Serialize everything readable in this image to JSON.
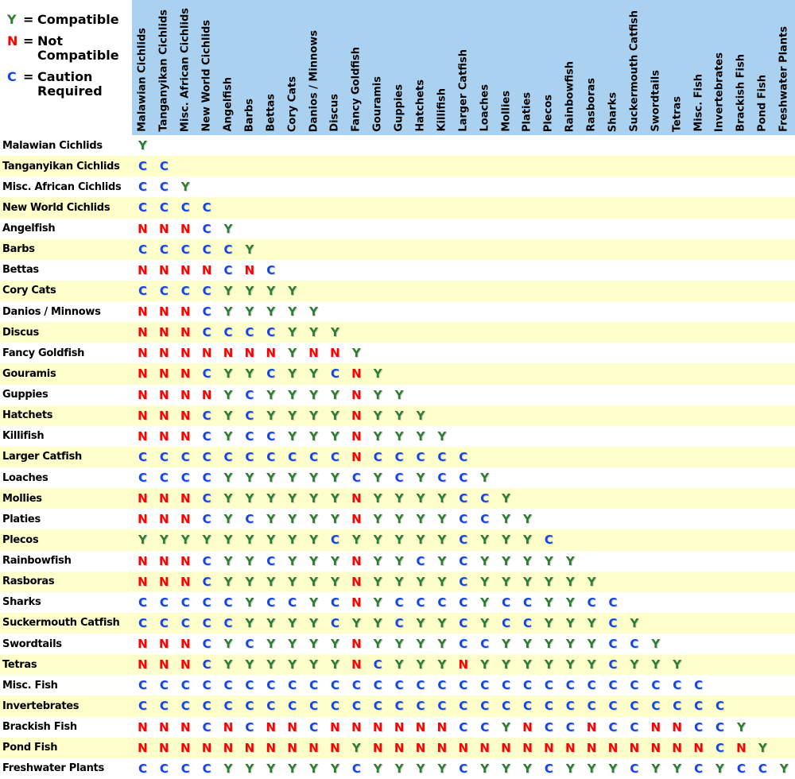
{
  "legend": {
    "items": [
      {
        "symbol": "Y",
        "label": "Compatible",
        "meaning": "compatible"
      },
      {
        "symbol": "N",
        "label": "Not\nCompatible",
        "meaning": "not_compatible"
      },
      {
        "symbol": "C",
        "label": "Caution\nRequired",
        "meaning": "caution"
      }
    ]
  },
  "colors": {
    "compatible": "#2e7d32",
    "not_compatible": "#ff0000",
    "caution": "#1446e6",
    "header_bg": "#aad2f0",
    "row_bg": "#ffffff",
    "row_alt_bg": "#ffffcc"
  },
  "chart_data": {
    "type": "table",
    "title": "",
    "legend_position": "top-left",
    "columns": [
      "Malawian Cichlids",
      "Tanganyikan Cichlids",
      "Misc. African Cichlids",
      "New World Cichlids",
      "Angelfish",
      "Barbs",
      "Bettas",
      "Cory Cats",
      "Danios / Minnows",
      "Discus",
      "Fancy Goldfish",
      "Gouramis",
      "Guppies",
      "Hatchets",
      "Killifish",
      "Larger Catfish",
      "Loaches",
      "Mollies",
      "Platies",
      "Plecos",
      "Rainbowfish",
      "Rasboras",
      "Sharks",
      "Suckermouth Catfish",
      "Swordtails",
      "Tetras",
      "Misc. Fish",
      "Invertebrates",
      "Brackish Fish",
      "Pond Fish",
      "Freshwater Plants"
    ],
    "rows": [
      {
        "name": "Malawian Cichlids",
        "values": [
          "Y"
        ]
      },
      {
        "name": "Tanganyikan Cichlids",
        "values": [
          "C",
          "C"
        ]
      },
      {
        "name": "Misc. African Cichlids",
        "values": [
          "C",
          "C",
          "Y"
        ]
      },
      {
        "name": "New World Cichlids",
        "values": [
          "C",
          "C",
          "C",
          "C"
        ]
      },
      {
        "name": "Angelfish",
        "values": [
          "N",
          "N",
          "N",
          "C",
          "Y"
        ]
      },
      {
        "name": "Barbs",
        "values": [
          "C",
          "C",
          "C",
          "C",
          "C",
          "Y"
        ]
      },
      {
        "name": "Bettas",
        "values": [
          "N",
          "N",
          "N",
          "N",
          "C",
          "N",
          "C"
        ]
      },
      {
        "name": "Cory Cats",
        "values": [
          "C",
          "C",
          "C",
          "C",
          "Y",
          "Y",
          "Y",
          "Y"
        ]
      },
      {
        "name": "Danios / Minnows",
        "values": [
          "N",
          "N",
          "N",
          "C",
          "Y",
          "Y",
          "Y",
          "Y",
          "Y"
        ]
      },
      {
        "name": "Discus",
        "values": [
          "N",
          "N",
          "N",
          "C",
          "C",
          "C",
          "C",
          "Y",
          "Y",
          "Y"
        ]
      },
      {
        "name": "Fancy Goldfish",
        "values": [
          "N",
          "N",
          "N",
          "N",
          "N",
          "N",
          "N",
          "Y",
          "N",
          "N",
          "Y"
        ]
      },
      {
        "name": "Gouramis",
        "values": [
          "N",
          "N",
          "N",
          "C",
          "Y",
          "Y",
          "C",
          "Y",
          "Y",
          "C",
          "N",
          "Y"
        ]
      },
      {
        "name": "Guppies",
        "values": [
          "N",
          "N",
          "N",
          "N",
          "Y",
          "C",
          "Y",
          "Y",
          "Y",
          "Y",
          "N",
          "Y",
          "Y"
        ]
      },
      {
        "name": "Hatchets",
        "values": [
          "N",
          "N",
          "N",
          "C",
          "Y",
          "C",
          "Y",
          "Y",
          "Y",
          "Y",
          "N",
          "Y",
          "Y",
          "Y"
        ]
      },
      {
        "name": "Killifish",
        "values": [
          "N",
          "N",
          "N",
          "C",
          "Y",
          "C",
          "C",
          "Y",
          "Y",
          "Y",
          "N",
          "Y",
          "Y",
          "Y",
          "Y"
        ]
      },
      {
        "name": "Larger Catfish",
        "values": [
          "C",
          "C",
          "C",
          "C",
          "C",
          "C",
          "C",
          "C",
          "C",
          "C",
          "N",
          "C",
          "C",
          "C",
          "C",
          "C"
        ]
      },
      {
        "name": "Loaches",
        "values": [
          "C",
          "C",
          "C",
          "C",
          "Y",
          "Y",
          "Y",
          "Y",
          "Y",
          "Y",
          "C",
          "Y",
          "C",
          "Y",
          "C",
          "C",
          "Y"
        ]
      },
      {
        "name": "Mollies",
        "values": [
          "N",
          "N",
          "N",
          "C",
          "Y",
          "Y",
          "Y",
          "Y",
          "Y",
          "Y",
          "N",
          "Y",
          "Y",
          "Y",
          "Y",
          "C",
          "C",
          "Y"
        ]
      },
      {
        "name": "Platies",
        "values": [
          "N",
          "N",
          "N",
          "C",
          "Y",
          "C",
          "Y",
          "Y",
          "Y",
          "Y",
          "N",
          "Y",
          "Y",
          "Y",
          "Y",
          "C",
          "C",
          "Y",
          "Y"
        ]
      },
      {
        "name": "Plecos",
        "values": [
          "Y",
          "Y",
          "Y",
          "Y",
          "Y",
          "Y",
          "Y",
          "Y",
          "Y",
          "C",
          "Y",
          "Y",
          "Y",
          "Y",
          "Y",
          "C",
          "Y",
          "Y",
          "Y",
          "C"
        ]
      },
      {
        "name": "Rainbowfish",
        "values": [
          "N",
          "N",
          "N",
          "C",
          "Y",
          "Y",
          "C",
          "Y",
          "Y",
          "Y",
          "N",
          "Y",
          "Y",
          "C",
          "Y",
          "C",
          "Y",
          "Y",
          "Y",
          "Y",
          "Y"
        ]
      },
      {
        "name": "Rasboras",
        "values": [
          "N",
          "N",
          "N",
          "C",
          "Y",
          "Y",
          "Y",
          "Y",
          "Y",
          "Y",
          "N",
          "Y",
          "Y",
          "Y",
          "Y",
          "C",
          "Y",
          "Y",
          "Y",
          "Y",
          "Y",
          "Y"
        ]
      },
      {
        "name": "Sharks",
        "values": [
          "C",
          "C",
          "C",
          "C",
          "C",
          "Y",
          "C",
          "C",
          "Y",
          "C",
          "N",
          "Y",
          "C",
          "C",
          "C",
          "C",
          "Y",
          "C",
          "C",
          "Y",
          "Y",
          "C",
          "C"
        ]
      },
      {
        "name": "Suckermouth Catfish",
        "values": [
          "C",
          "C",
          "C",
          "C",
          "C",
          "Y",
          "Y",
          "Y",
          "Y",
          "C",
          "Y",
          "Y",
          "C",
          "Y",
          "Y",
          "C",
          "Y",
          "C",
          "C",
          "Y",
          "Y",
          "Y",
          "C",
          "Y"
        ]
      },
      {
        "name": "Swordtails",
        "values": [
          "N",
          "N",
          "N",
          "C",
          "Y",
          "C",
          "Y",
          "Y",
          "Y",
          "Y",
          "N",
          "Y",
          "Y",
          "Y",
          "Y",
          "C",
          "C",
          "Y",
          "Y",
          "Y",
          "Y",
          "Y",
          "C",
          "C",
          "Y"
        ]
      },
      {
        "name": "Tetras",
        "values": [
          "N",
          "N",
          "N",
          "C",
          "Y",
          "Y",
          "Y",
          "Y",
          "Y",
          "Y",
          "N",
          "C",
          "Y",
          "Y",
          "Y",
          "N",
          "Y",
          "Y",
          "Y",
          "Y",
          "Y",
          "Y",
          "C",
          "Y",
          "Y",
          "Y"
        ]
      },
      {
        "name": "Misc. Fish",
        "values": [
          "C",
          "C",
          "C",
          "C",
          "C",
          "C",
          "C",
          "C",
          "C",
          "C",
          "C",
          "C",
          "C",
          "C",
          "C",
          "C",
          "C",
          "C",
          "C",
          "C",
          "C",
          "C",
          "C",
          "C",
          "C",
          "C",
          "C"
        ]
      },
      {
        "name": "Invertebrates",
        "values": [
          "C",
          "C",
          "C",
          "C",
          "C",
          "C",
          "C",
          "C",
          "C",
          "C",
          "C",
          "C",
          "C",
          "C",
          "C",
          "C",
          "C",
          "C",
          "C",
          "C",
          "C",
          "C",
          "C",
          "C",
          "C",
          "C",
          "C",
          "C"
        ]
      },
      {
        "name": "Brackish Fish",
        "values": [
          "N",
          "N",
          "N",
          "C",
          "N",
          "C",
          "N",
          "N",
          "C",
          "N",
          "N",
          "N",
          "N",
          "N",
          "N",
          "C",
          "C",
          "Y",
          "N",
          "C",
          "C",
          "N",
          "C",
          "C",
          "N",
          "N",
          "C",
          "C",
          "Y"
        ]
      },
      {
        "name": "Pond Fish",
        "values": [
          "N",
          "N",
          "N",
          "N",
          "N",
          "N",
          "N",
          "N",
          "N",
          "N",
          "Y",
          "N",
          "N",
          "N",
          "N",
          "N",
          "N",
          "N",
          "N",
          "N",
          "N",
          "N",
          "N",
          "N",
          "N",
          "N",
          "N",
          "C",
          "N",
          "Y"
        ]
      },
      {
        "name": "Freshwater Plants",
        "values": [
          "C",
          "C",
          "C",
          "C",
          "Y",
          "Y",
          "Y",
          "Y",
          "Y",
          "Y",
          "C",
          "Y",
          "Y",
          "Y",
          "Y",
          "C",
          "Y",
          "Y",
          "Y",
          "C",
          "Y",
          "Y",
          "Y",
          "C",
          "Y",
          "Y",
          "C",
          "Y",
          "C",
          "C",
          "Y"
        ]
      }
    ]
  }
}
